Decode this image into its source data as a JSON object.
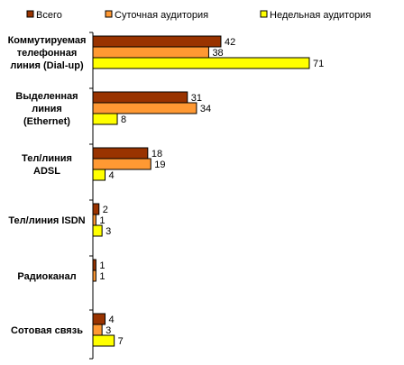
{
  "chart_data": {
    "type": "bar",
    "orientation": "horizontal",
    "categories": [
      [
        "Коммутируемая",
        "телефонная",
        "линия (Dial-up)"
      ],
      [
        "Выделенная",
        "линия",
        "(Ethernet)"
      ],
      [
        "Тел/линия",
        "ADSL"
      ],
      [
        "Тел/линия ISDN"
      ],
      [
        "Радиоканал"
      ],
      [
        "Сотовая связь"
      ]
    ],
    "series": [
      {
        "name": "Всего",
        "color": "#993300",
        "values": [
          42,
          31,
          18,
          2,
          1,
          4
        ]
      },
      {
        "name": "Суточная аудитория",
        "color": "#ff9933",
        "values": [
          38,
          34,
          19,
          1,
          1,
          3
        ]
      },
      {
        "name": "Недельная аудитория",
        "color": "#ffff00",
        "values": [
          71,
          8,
          4,
          3,
          null,
          7
        ]
      }
    ],
    "legend_position": "top",
    "xlim": [
      0,
      75
    ],
    "grid": false
  }
}
